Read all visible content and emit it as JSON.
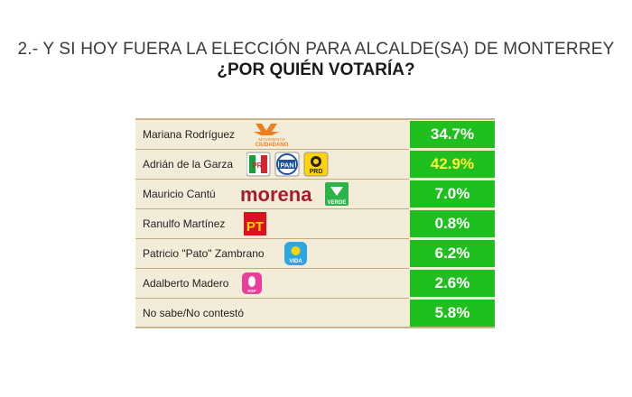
{
  "header": {
    "title": "2.- Y SI HOY FUERA LA ELECCIÓN PARA ALCALDE(SA) DE MONTERREY",
    "subtitle": "¿POR QUIÉN VOTARÍA?"
  },
  "chart_data": {
    "type": "table",
    "categories": [
      "Mariana Rodríguez",
      "Adrián de la Garza",
      "Mauricio Cantú",
      "Ranulfo Martínez",
      "Patricio \"Pato\" Zambrano",
      "Adalberto Madero",
      "No sabe/No contestó"
    ],
    "values": [
      34.7,
      42.9,
      7.0,
      0.8,
      6.2,
      2.6,
      5.8
    ],
    "value_labels": [
      "34.7%",
      "42.9%",
      "7.0%",
      "0.8%",
      "6.2%",
      "2.6%",
      "5.8%"
    ],
    "highlight_index": 1,
    "colors": {
      "value_bg": "#1fbf1f",
      "value_text": "#ffffff",
      "highlight_text": "#fff03a",
      "row_bg": "#f3ecd8"
    }
  },
  "logos": {
    "mc": {
      "line1": "MOVIMIENTO",
      "line2": "CIUDADANO",
      "color": "#f07d1e"
    },
    "pri": {
      "text": "PRI"
    },
    "pan": {
      "text": "PAN"
    },
    "prd": {
      "text": "PRD"
    },
    "morena": {
      "text": "morena",
      "color": "#a51c30"
    },
    "verde": {
      "text": "VERDE",
      "color": "#2cb34a"
    },
    "pt": {
      "text": "PT",
      "color": "#d9121b"
    },
    "vida": {
      "text": "VIDA",
      "color": "#2aa8e0"
    },
    "pink": {
      "text": "RSP",
      "color": "#e8409a"
    }
  }
}
